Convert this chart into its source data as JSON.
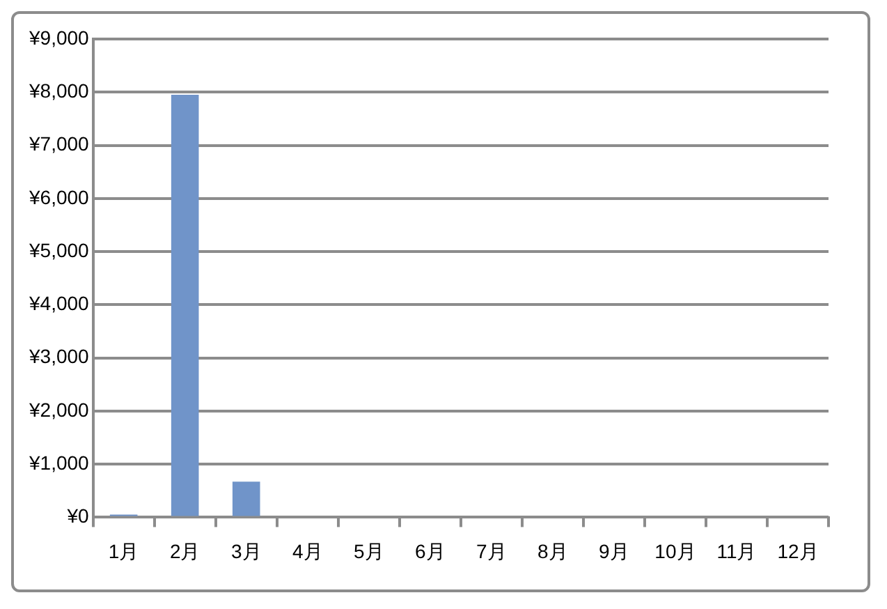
{
  "chart_data": {
    "type": "bar",
    "categories": [
      "1月",
      "2月",
      "3月",
      "4月",
      "5月",
      "6月",
      "7月",
      "8月",
      "9月",
      "10月",
      "11月",
      "12月"
    ],
    "values": [
      50,
      7950,
      670,
      0,
      0,
      0,
      0,
      0,
      0,
      0,
      0,
      0
    ],
    "color": "#7094c9",
    "ylim": [
      0,
      9000
    ],
    "yticks": [
      {
        "value": 0,
        "label": "¥0"
      },
      {
        "value": 1000,
        "label": "¥1,000"
      },
      {
        "value": 2000,
        "label": "¥2,000"
      },
      {
        "value": 3000,
        "label": "¥3,000"
      },
      {
        "value": 4000,
        "label": "¥4,000"
      },
      {
        "value": 5000,
        "label": "¥5,000"
      },
      {
        "value": 6000,
        "label": "¥6,000"
      },
      {
        "value": 7000,
        "label": "¥7,000"
      },
      {
        "value": 8000,
        "label": "¥8,000"
      },
      {
        "value": 9000,
        "label": "¥9,000"
      }
    ],
    "grid": "y",
    "legend": false
  }
}
